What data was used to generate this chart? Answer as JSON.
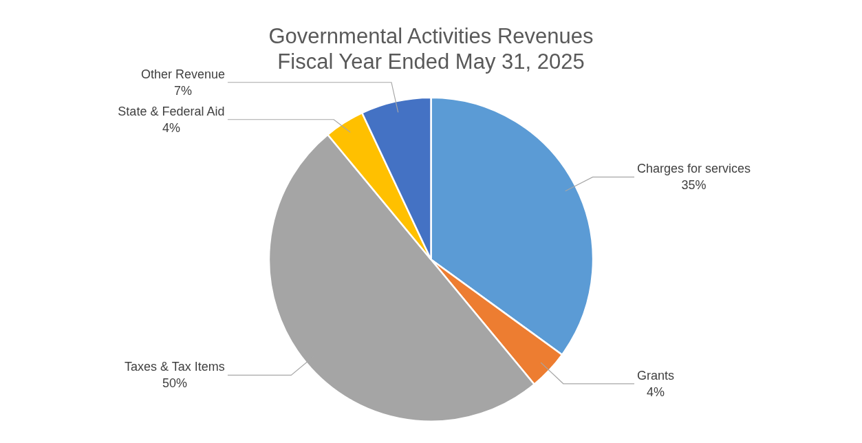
{
  "chart_data": {
    "type": "pie",
    "title": "Governmental Activities Revenues\nFiscal Year Ended May 31, 2025",
    "categories": [
      "Charges for services",
      "Grants",
      "Taxes & Tax Items",
      "State & Federal Aid",
      "Other Revenue"
    ],
    "values": [
      35,
      4,
      50,
      4,
      7
    ],
    "colors": [
      "#5b9bd5",
      "#ed7d31",
      "#a5a5a5",
      "#ffc000",
      "#4472c4"
    ],
    "value_labels": [
      "35%",
      "4%",
      "50%",
      "4%",
      "7%"
    ],
    "legend": false
  }
}
